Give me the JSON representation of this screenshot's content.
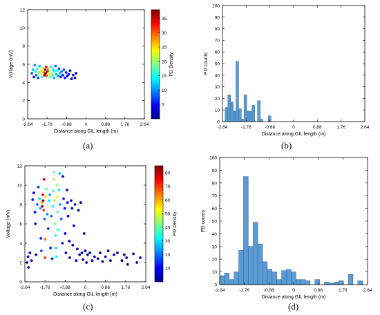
{
  "panels": [
    {
      "caption": "(a)"
    },
    {
      "caption": "(b)"
    },
    {
      "caption": "(c)"
    },
    {
      "caption": "(d)"
    }
  ],
  "colors": {
    "hist_fill": "#5b9bd5",
    "hist_edge": "#2f5f8a",
    "axis": "#000000",
    "colormap": [
      "#00008f",
      "#0000ff",
      "#0080ff",
      "#00ffff",
      "#80ff80",
      "#ffff00",
      "#ff8000",
      "#ff0000",
      "#800000"
    ]
  },
  "chart_data": [
    {
      "panel": "a",
      "type": "scatter",
      "xlabel": "Distance along GIL length (m)",
      "ylabel": "Voltage (mV)",
      "xlim": [
        -2.64,
        2.64
      ],
      "ylim": [
        0,
        12
      ],
      "xticks": [
        "-2.64",
        "-1.76",
        "-0.88",
        "0",
        "0.88",
        "1.76",
        "2.64"
      ],
      "xtick_values": [
        -2.64,
        -1.76,
        -0.88,
        0,
        0.88,
        1.76,
        2.64
      ],
      "yticks": [
        0,
        2,
        4,
        6,
        8,
        10,
        12
      ],
      "colorbar": {
        "label": "PD Density",
        "range": [
          0,
          38
        ],
        "ticks": [
          5,
          10,
          15,
          20,
          25,
          30,
          35
        ]
      },
      "points": [
        [
          -2.45,
          5.0,
          8
        ],
        [
          -2.4,
          5.4,
          12
        ],
        [
          -2.36,
          4.6,
          6
        ],
        [
          -2.32,
          5.9,
          10
        ],
        [
          -2.28,
          5.2,
          14
        ],
        [
          -2.25,
          4.8,
          9
        ],
        [
          -2.2,
          5.5,
          16
        ],
        [
          -2.17,
          4.5,
          7
        ],
        [
          -2.13,
          5.1,
          18
        ],
        [
          -2.1,
          5.8,
          12
        ],
        [
          -2.05,
          4.9,
          22
        ],
        [
          -2.02,
          5.3,
          25
        ],
        [
          -1.98,
          4.6,
          15
        ],
        [
          -1.95,
          5.6,
          20
        ],
        [
          -1.92,
          5.1,
          28
        ],
        [
          -1.88,
          4.8,
          35
        ],
        [
          -1.85,
          5.4,
          37
        ],
        [
          -1.83,
          5.0,
          38
        ],
        [
          -1.8,
          5.7,
          33
        ],
        [
          -1.78,
          4.7,
          30
        ],
        [
          -1.75,
          5.2,
          36
        ],
        [
          -1.72,
          5.5,
          27
        ],
        [
          -1.68,
          4.9,
          24
        ],
        [
          -1.65,
          5.3,
          19
        ],
        [
          -1.62,
          4.6,
          17
        ],
        [
          -1.58,
          5.7,
          14
        ],
        [
          -1.55,
          5.0,
          20
        ],
        [
          -1.52,
          4.8,
          16
        ],
        [
          -1.48,
          5.4,
          13
        ],
        [
          -1.45,
          4.5,
          11
        ],
        [
          -1.42,
          5.2,
          15
        ],
        [
          -1.38,
          5.8,
          9
        ],
        [
          -1.35,
          4.9,
          12
        ],
        [
          -1.3,
          5.3,
          14
        ],
        [
          -1.26,
          4.7,
          10
        ],
        [
          -1.22,
          5.5,
          8
        ],
        [
          -1.18,
          5.0,
          12
        ],
        [
          -1.14,
          4.6,
          7
        ],
        [
          -1.1,
          5.2,
          9
        ],
        [
          -1.05,
          4.8,
          6
        ],
        [
          -1.0,
          5.4,
          8
        ],
        [
          -0.95,
          4.5,
          5
        ],
        [
          -0.9,
          5.1,
          6
        ],
        [
          -0.85,
          4.7,
          4
        ],
        [
          -0.78,
          4.9,
          5
        ],
        [
          -0.72,
          5.3,
          4
        ],
        [
          -0.65,
          4.4,
          3
        ],
        [
          -0.58,
          4.8,
          3
        ],
        [
          -0.5,
          4.5,
          2
        ],
        [
          -0.45,
          5.0,
          2
        ]
      ]
    },
    {
      "panel": "b",
      "type": "bar",
      "xlabel": "Distance along GIL length (m)",
      "ylabel": "PD counts",
      "xlim": [
        -2.64,
        2.64
      ],
      "ylim": [
        0,
        100
      ],
      "xticks": [
        "-2.64",
        "-1.76",
        "-0.88",
        "0",
        "0.88",
        "1.76",
        "2.64"
      ],
      "xtick_values": [
        -2.64,
        -1.76,
        -0.88,
        0,
        0.88,
        1.76,
        2.64
      ],
      "yticks": [
        0,
        10,
        20,
        30,
        40,
        50,
        60,
        70,
        80,
        90,
        100
      ],
      "bin_start": -2.64,
      "bin_width": 0.1,
      "values": [
        0,
        12,
        23,
        17,
        9,
        52,
        11,
        2,
        23,
        9,
        9,
        14,
        0,
        18,
        2,
        0,
        0,
        5
      ]
    },
    {
      "panel": "c",
      "type": "scatter",
      "xlabel": "Distance along GIL length (m)",
      "ylabel": "Voltage (mV)",
      "xlim": [
        -2.64,
        2.64
      ],
      "ylim": [
        0,
        12
      ],
      "xticks": [
        "-2.64",
        "-1.76",
        "-0.88",
        "0",
        "0.88",
        "1.76",
        "2.64"
      ],
      "xtick_values": [
        -2.64,
        -1.76,
        -0.88,
        0,
        0.88,
        1.76,
        2.64
      ],
      "yticks": [
        0,
        2,
        4,
        6,
        8,
        10,
        12
      ],
      "colorbar": {
        "label": "PD Density",
        "range": [
          0,
          85
        ],
        "ticks": [
          10,
          20,
          30,
          40,
          50,
          60,
          70,
          80
        ]
      },
      "points": [
        [
          -2.55,
          2.0,
          5
        ],
        [
          -2.5,
          2.6,
          8
        ],
        [
          -2.48,
          1.5,
          4
        ],
        [
          -2.42,
          3.0,
          10
        ],
        [
          -2.35,
          2.2,
          6
        ],
        [
          -2.3,
          8.5,
          12
        ],
        [
          -2.25,
          9.2,
          8
        ],
        [
          -2.2,
          7.2,
          10
        ],
        [
          -2.18,
          6.0,
          6
        ],
        [
          -2.15,
          2.8,
          5
        ],
        [
          -2.1,
          8.0,
          20
        ],
        [
          -2.05,
          9.8,
          15
        ],
        [
          -2.0,
          8.6,
          30
        ],
        [
          -1.96,
          7.6,
          25
        ],
        [
          -1.94,
          4.5,
          12
        ],
        [
          -1.92,
          3.2,
          18
        ],
        [
          -1.9,
          8.2,
          60
        ],
        [
          -1.88,
          7.8,
          80
        ],
        [
          -1.86,
          9.0,
          75
        ],
        [
          -1.84,
          8.4,
          82
        ],
        [
          -1.82,
          7.4,
          70
        ],
        [
          -1.8,
          10.6,
          78
        ],
        [
          -1.78,
          6.5,
          20
        ],
        [
          -1.76,
          2.5,
          70
        ],
        [
          -1.75,
          4.4,
          65
        ],
        [
          -1.73,
          8.8,
          55
        ],
        [
          -1.7,
          9.6,
          40
        ],
        [
          -1.66,
          7.0,
          22
        ],
        [
          -1.62,
          5.5,
          15
        ],
        [
          -1.58,
          8.4,
          30
        ],
        [
          -1.55,
          9.0,
          24
        ],
        [
          -1.52,
          3.5,
          12
        ],
        [
          -1.48,
          6.8,
          20
        ],
        [
          -1.45,
          2.4,
          14
        ],
        [
          -1.42,
          7.8,
          35
        ],
        [
          -1.4,
          9.4,
          38
        ],
        [
          -1.38,
          10.6,
          45
        ],
        [
          -1.36,
          11.3,
          42
        ],
        [
          -1.34,
          8.4,
          48
        ],
        [
          -1.32,
          6.0,
          40
        ],
        [
          -1.3,
          4.8,
          36
        ],
        [
          -1.28,
          3.5,
          30
        ],
        [
          -1.26,
          2.6,
          32
        ],
        [
          -1.24,
          10.0,
          44
        ],
        [
          -1.22,
          8.8,
          50
        ],
        [
          -1.2,
          7.2,
          38
        ],
        [
          -1.18,
          5.4,
          34
        ],
        [
          -1.15,
          9.5,
          30
        ],
        [
          -1.12,
          11.2,
          28
        ],
        [
          -1.1,
          8.0,
          25
        ],
        [
          -1.05,
          6.5,
          18
        ],
        [
          -1.0,
          4.0,
          12
        ],
        [
          -0.98,
          10.9,
          10
        ],
        [
          -0.95,
          8.6,
          14
        ],
        [
          -0.9,
          7.6,
          10
        ],
        [
          -0.88,
          5.0,
          8
        ],
        [
          -0.85,
          3.0,
          6
        ],
        [
          -0.8,
          9.5,
          6
        ],
        [
          -0.78,
          8.2,
          9
        ],
        [
          -0.75,
          6.8,
          7
        ],
        [
          -0.7,
          4.2,
          5
        ],
        [
          -0.68,
          2.5,
          6
        ],
        [
          -0.62,
          8.4,
          5
        ],
        [
          -0.58,
          7.6,
          7
        ],
        [
          -0.55,
          3.8,
          4
        ],
        [
          -0.5,
          5.8,
          5
        ],
        [
          -0.45,
          8.0,
          4
        ],
        [
          -0.4,
          2.2,
          5
        ],
        [
          -0.35,
          3.4,
          4
        ],
        [
          -0.3,
          7.4,
          3
        ],
        [
          -0.25,
          2.8,
          4
        ],
        [
          -0.2,
          8.2,
          3
        ],
        [
          -0.15,
          3.0,
          3
        ],
        [
          -0.1,
          2.3,
          4
        ],
        [
          -0.05,
          5.0,
          3
        ],
        [
          0.0,
          3.2,
          3
        ],
        [
          0.05,
          2.0,
          4
        ],
        [
          0.1,
          2.8,
          3
        ],
        [
          0.2,
          3.0,
          2
        ],
        [
          0.3,
          2.2,
          2
        ],
        [
          0.4,
          2.6,
          3
        ],
        [
          0.55,
          2.4,
          2
        ],
        [
          0.65,
          3.0,
          2
        ],
        [
          0.75,
          2.1,
          2
        ],
        [
          0.88,
          2.6,
          2
        ],
        [
          1.0,
          3.2,
          2
        ],
        [
          1.1,
          2.2,
          2
        ],
        [
          1.25,
          2.8,
          2
        ],
        [
          1.4,
          3.0,
          2
        ],
        [
          1.6,
          2.2,
          2
        ],
        [
          1.7,
          2.8,
          2
        ],
        [
          1.8,
          2.5,
          2
        ],
        [
          1.85,
          1.8,
          3
        ],
        [
          2.1,
          2.9,
          2
        ],
        [
          2.25,
          2.0,
          2
        ],
        [
          2.4,
          2.5,
          2
        ]
      ]
    },
    {
      "panel": "d",
      "type": "bar",
      "xlabel": "Distance along GIL length (m)",
      "ylabel": "PD counts",
      "xlim": [
        -2.64,
        2.64
      ],
      "ylim": [
        0,
        100
      ],
      "xticks": [
        "-2.64",
        "-1.76",
        "-0.88",
        "0",
        "0.88",
        "1.76",
        "2.64"
      ],
      "xtick_values": [
        -2.64,
        -1.76,
        -0.88,
        0,
        0.88,
        1.76,
        2.64
      ],
      "yticks": [
        0,
        10,
        20,
        30,
        40,
        50,
        60,
        70,
        80,
        90,
        100
      ],
      "bin_start": -2.64,
      "bin_width": 0.17,
      "values": [
        7,
        9,
        4,
        10,
        27,
        85,
        30,
        49,
        32,
        18,
        12,
        10,
        4,
        11,
        12,
        10,
        4,
        4,
        3,
        0,
        4,
        0,
        2,
        1,
        2,
        3,
        0,
        8,
        0,
        3
      ]
    }
  ]
}
